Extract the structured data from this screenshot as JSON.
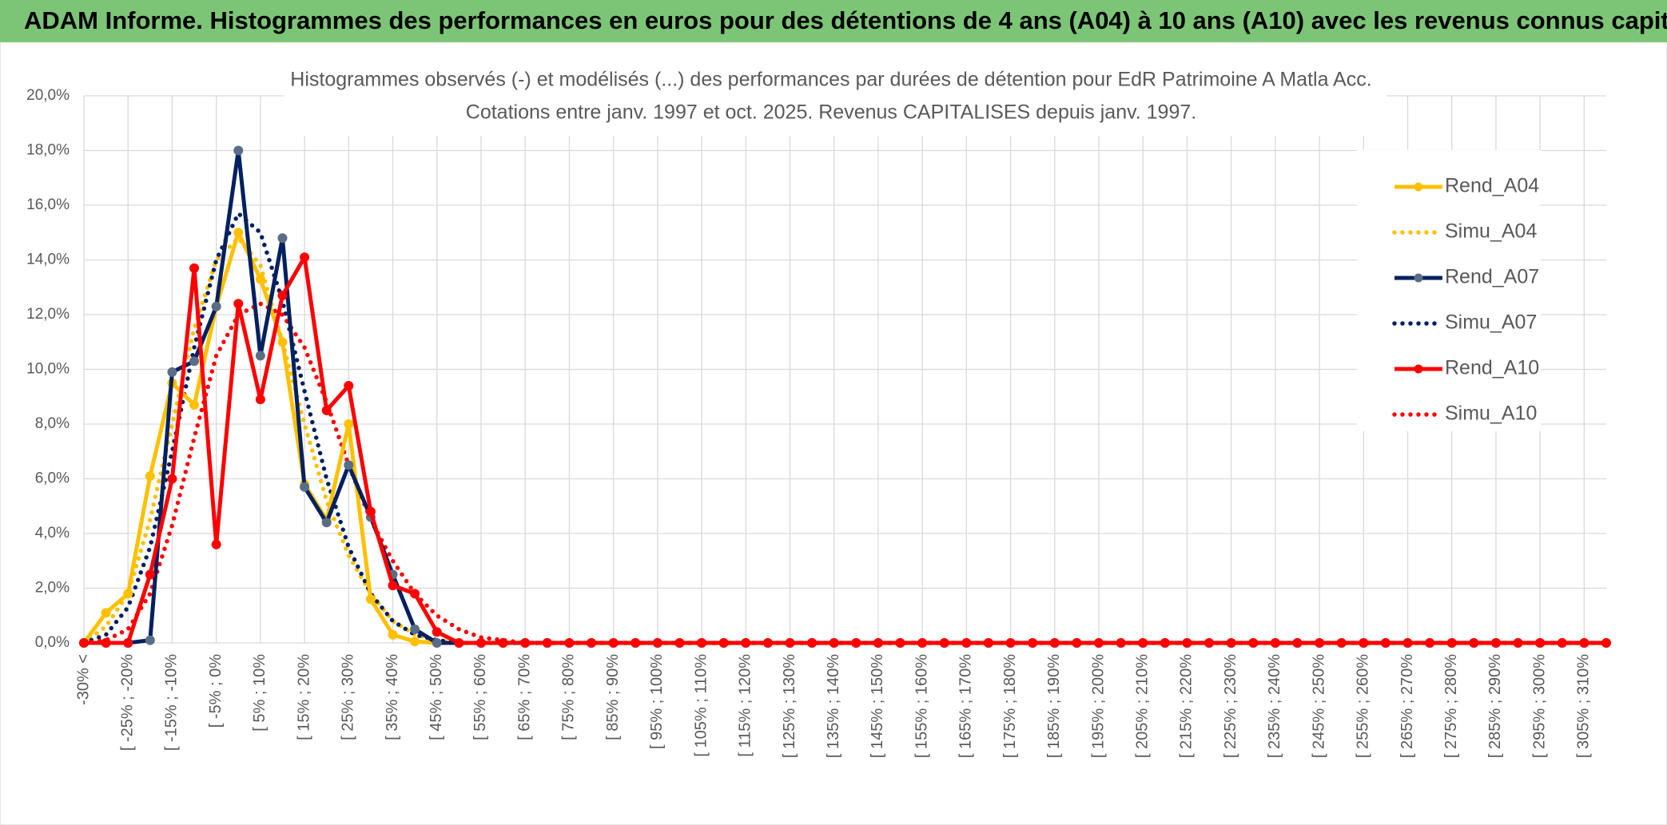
{
  "chart_data": {
    "type": "line",
    "banner": "ADAM Informe. Histogrammes des performances en euros pour des détentions de 4 ans (A04) à 10 ans (A10) avec les revenus connus capitalisés",
    "title": [
      "Histogrammes observés (-) et modélisés (...) des performances par durées de détention pour EdR Patrimoine A Matla Acc.",
      "Cotations entre janv. 1997 et oct. 2025. Revenus CAPITALISES depuis janv. 1997."
    ],
    "categories": [
      "-30% <",
      null,
      "[ -25% ; -20%",
      null,
      "[ -15% ; -10%",
      null,
      "[ -5% ; 0%",
      null,
      "[ 5% ; 10%",
      null,
      "[ 15% ; 20%",
      null,
      "[ 25% ; 30%",
      null,
      "[ 35% ; 40%",
      null,
      "[ 45% ; 50%",
      null,
      "[ 55% ; 60%",
      null,
      "[ 65% ; 70%",
      null,
      "[ 75% ; 80%",
      null,
      "[ 85% ; 90%",
      null,
      "[ 95% ; 100%",
      null,
      "[ 105% ; 110%",
      null,
      "[ 115% ; 120%",
      null,
      "[ 125% ; 130%",
      null,
      "[ 135% ; 140%",
      null,
      "[ 145% ; 150%",
      null,
      "[ 155% ; 160%",
      null,
      "[ 165% ; 170%",
      null,
      "[ 175% ; 180%",
      null,
      "[ 185% ; 190%",
      null,
      "[ 195% ; 200%",
      null,
      "[ 205% ; 210%",
      null,
      "[ 215% ; 220%",
      null,
      "[ 225% ; 230%",
      null,
      "[ 235% ; 240%",
      null,
      "[ 245% ; 250%",
      null,
      "[ 255% ; 260%",
      null,
      "[ 265% ; 270%",
      null,
      "[ 275% ; 280%",
      null,
      "[ 285% ; 290%",
      null,
      "[ 295% ; 300%",
      null,
      "[ 305% ; 310%",
      null
    ],
    "series": [
      {
        "name": "Rend_A04",
        "color": "#ffc000",
        "style": "solid",
        "marker_color": "#ffc000",
        "values": [
          0,
          1.1,
          1.8,
          6.1,
          9.5,
          8.7,
          12.3,
          15.0,
          13.3,
          11.0,
          5.8,
          4.5,
          8.0,
          1.6,
          0.3,
          0.05,
          0,
          0,
          0,
          0,
          0,
          0,
          0,
          0,
          0,
          0,
          0,
          0,
          0,
          0,
          0,
          0,
          0,
          0,
          0,
          0,
          0,
          0,
          0,
          0,
          0,
          0,
          0,
          0,
          0,
          0,
          0,
          0,
          0,
          0,
          0,
          0,
          0,
          0,
          0,
          0,
          0,
          0,
          0,
          0,
          0,
          0,
          0,
          0,
          0,
          0,
          0,
          0,
          0,
          0
        ]
      },
      {
        "name": "Simu_A04",
        "color": "#ffc000",
        "style": "dotted",
        "values": [
          0,
          0.6,
          1.8,
          4.5,
          8.0,
          11.5,
          14.0,
          14.8,
          13.8,
          11.0,
          8.0,
          5.2,
          3.2,
          1.8,
          0.8,
          0.3,
          0.1,
          0,
          0,
          0,
          0,
          0,
          0,
          0,
          0,
          0,
          0,
          0,
          0,
          0,
          0,
          0,
          0,
          0,
          0,
          0,
          0,
          0,
          0,
          0,
          0,
          0,
          0,
          0,
          0,
          0,
          0,
          0,
          0,
          0,
          0,
          0,
          0,
          0,
          0,
          0,
          0,
          0,
          0,
          0,
          0,
          0,
          0,
          0,
          0,
          0,
          0,
          0,
          0,
          0
        ]
      },
      {
        "name": "Rend_A07",
        "color": "#002060",
        "style": "solid",
        "marker_color": "#596e86",
        "values": [
          0,
          0,
          0,
          0.1,
          9.9,
          10.3,
          12.3,
          18.0,
          10.5,
          14.8,
          5.7,
          4.4,
          6.5,
          4.6,
          2.5,
          0.5,
          0,
          0,
          0,
          0,
          0,
          0,
          0,
          0,
          0,
          0,
          0,
          0,
          0,
          0,
          0,
          0,
          0,
          0,
          0,
          0,
          0,
          0,
          0,
          0,
          0,
          0,
          0,
          0,
          0,
          0,
          0,
          0,
          0,
          0,
          0,
          0,
          0,
          0,
          0,
          0,
          0,
          0,
          0,
          0,
          0,
          0,
          0,
          0,
          0,
          0,
          0,
          0,
          0,
          0
        ]
      },
      {
        "name": "Simu_A07",
        "color": "#002060",
        "style": "dotted",
        "values": [
          0,
          0.3,
          1.3,
          3.5,
          7.0,
          10.8,
          14.0,
          15.7,
          15.0,
          12.5,
          9.2,
          6.0,
          3.5,
          1.8,
          0.8,
          0.3,
          0.1,
          0,
          0,
          0,
          0,
          0,
          0,
          0,
          0,
          0,
          0,
          0,
          0,
          0,
          0,
          0,
          0,
          0,
          0,
          0,
          0,
          0,
          0,
          0,
          0,
          0,
          0,
          0,
          0,
          0,
          0,
          0,
          0,
          0,
          0,
          0,
          0,
          0,
          0,
          0,
          0,
          0,
          0,
          0,
          0,
          0,
          0,
          0,
          0,
          0,
          0,
          0,
          0,
          0
        ]
      },
      {
        "name": "Rend_A10",
        "color": "#ff0000",
        "style": "solid",
        "marker_color": "#ff0000",
        "values": [
          0,
          0,
          0,
          2.5,
          6.0,
          13.7,
          3.6,
          12.4,
          8.9,
          12.7,
          14.1,
          8.5,
          9.4,
          4.8,
          2.1,
          1.8,
          0.4,
          0,
          0,
          0,
          0,
          0,
          0,
          0,
          0,
          0,
          0,
          0,
          0,
          0,
          0,
          0,
          0,
          0,
          0,
          0,
          0,
          0,
          0,
          0,
          0,
          0,
          0,
          0,
          0,
          0,
          0,
          0,
          0,
          0,
          0,
          0,
          0,
          0,
          0,
          0,
          0,
          0,
          0,
          0,
          0,
          0,
          0,
          0,
          0,
          0,
          0,
          0,
          0,
          0
        ]
      },
      {
        "name": "Simu_A10",
        "color": "#ff0000",
        "style": "dotted",
        "values": [
          0,
          0.1,
          0.5,
          1.8,
          4.3,
          7.5,
          10.5,
          12.0,
          12.4,
          12.0,
          10.8,
          8.8,
          6.5,
          4.5,
          3.0,
          1.8,
          1.0,
          0.5,
          0.2,
          0.1,
          0,
          0,
          0,
          0,
          0,
          0,
          0,
          0,
          0,
          0,
          0,
          0,
          0,
          0,
          0,
          0,
          0,
          0,
          0,
          0,
          0,
          0,
          0,
          0,
          0,
          0,
          0,
          0,
          0,
          0,
          0,
          0,
          0,
          0,
          0,
          0,
          0,
          0,
          0,
          0,
          0,
          0,
          0,
          0,
          0,
          0,
          0,
          0,
          0,
          0
        ]
      }
    ],
    "ylim": [
      0,
      20
    ],
    "yticks": [
      {
        "value": 0,
        "label": "0,0%"
      },
      {
        "value": 2,
        "label": "2,0%"
      },
      {
        "value": 4,
        "label": "4,0%"
      },
      {
        "value": 6,
        "label": "6,0%"
      },
      {
        "value": 8,
        "label": "8,0%"
      },
      {
        "value": 10,
        "label": "10,0%"
      },
      {
        "value": 12,
        "label": "12,0%"
      },
      {
        "value": 14,
        "label": "14,0%"
      },
      {
        "value": 16,
        "label": "16,0%"
      },
      {
        "value": 18,
        "label": "18,0%"
      },
      {
        "value": 20,
        "label": "20,0%"
      }
    ],
    "grid": true,
    "legend": "right"
  }
}
